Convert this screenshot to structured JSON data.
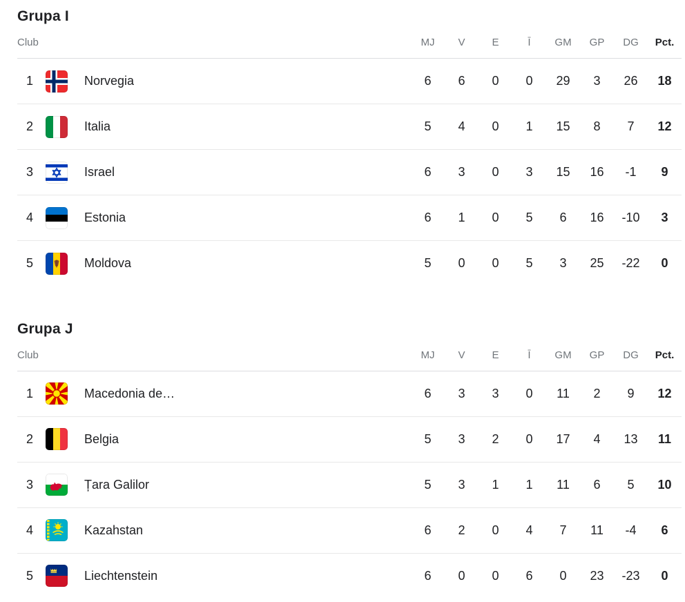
{
  "table": {
    "club_label": "Club",
    "columns": [
      "MJ",
      "V",
      "E",
      "Ī",
      "GM",
      "GP",
      "DG",
      "Pct."
    ]
  },
  "colors": {
    "text_primary": "#202124",
    "text_secondary": "#70757a",
    "header_divider": "#dcdde0",
    "row_divider": "#e8e8e8"
  },
  "chart_data": {
    "type": "table",
    "note": "football group standings, two groups"
  },
  "groups": [
    {
      "title": "Grupa I",
      "rows": [
        {
          "rank": "1",
          "team": "Norvegia",
          "flag": "norway",
          "flag_icon": "norway-flag-icon",
          "mj": "6",
          "v": "6",
          "e": "0",
          "i": "0",
          "gm": "29",
          "gp": "3",
          "dg": "26",
          "pct": "18"
        },
        {
          "rank": "2",
          "team": "Italia",
          "flag": "italy",
          "flag_icon": "italy-flag-icon",
          "mj": "5",
          "v": "4",
          "e": "0",
          "i": "1",
          "gm": "15",
          "gp": "8",
          "dg": "7",
          "pct": "12"
        },
        {
          "rank": "3",
          "team": "Israel",
          "flag": "israel",
          "flag_icon": "israel-flag-icon",
          "mj": "6",
          "v": "3",
          "e": "0",
          "i": "3",
          "gm": "15",
          "gp": "16",
          "dg": "-1",
          "pct": "9"
        },
        {
          "rank": "4",
          "team": "Estonia",
          "flag": "estonia",
          "flag_icon": "estonia-flag-icon",
          "mj": "6",
          "v": "1",
          "e": "0",
          "i": "5",
          "gm": "6",
          "gp": "16",
          "dg": "-10",
          "pct": "3"
        },
        {
          "rank": "5",
          "team": "Moldova",
          "flag": "moldova",
          "flag_icon": "moldova-flag-icon",
          "mj": "5",
          "v": "0",
          "e": "0",
          "i": "5",
          "gm": "3",
          "gp": "25",
          "dg": "-22",
          "pct": "0"
        }
      ]
    },
    {
      "title": "Grupa J",
      "rows": [
        {
          "rank": "1",
          "team": "Macedonia de…",
          "flag": "north_macedonia",
          "flag_icon": "north-macedonia-flag-icon",
          "mj": "6",
          "v": "3",
          "e": "3",
          "i": "0",
          "gm": "11",
          "gp": "2",
          "dg": "9",
          "pct": "12"
        },
        {
          "rank": "2",
          "team": "Belgia",
          "flag": "belgium",
          "flag_icon": "belgium-flag-icon",
          "mj": "5",
          "v": "3",
          "e": "2",
          "i": "0",
          "gm": "17",
          "gp": "4",
          "dg": "13",
          "pct": "11"
        },
        {
          "rank": "3",
          "team": "Țara Galilor",
          "flag": "wales",
          "flag_icon": "wales-flag-icon",
          "mj": "5",
          "v": "3",
          "e": "1",
          "i": "1",
          "gm": "11",
          "gp": "6",
          "dg": "5",
          "pct": "10"
        },
        {
          "rank": "4",
          "team": "Kazahstan",
          "flag": "kazakhstan",
          "flag_icon": "kazakhstan-flag-icon",
          "mj": "6",
          "v": "2",
          "e": "0",
          "i": "4",
          "gm": "7",
          "gp": "11",
          "dg": "-4",
          "pct": "6"
        },
        {
          "rank": "5",
          "team": "Liechtenstein",
          "flag": "liechtenstein",
          "flag_icon": "liechtenstein-flag-icon",
          "mj": "6",
          "v": "0",
          "e": "0",
          "i": "6",
          "gm": "0",
          "gp": "23",
          "dg": "-23",
          "pct": "0"
        }
      ]
    }
  ]
}
